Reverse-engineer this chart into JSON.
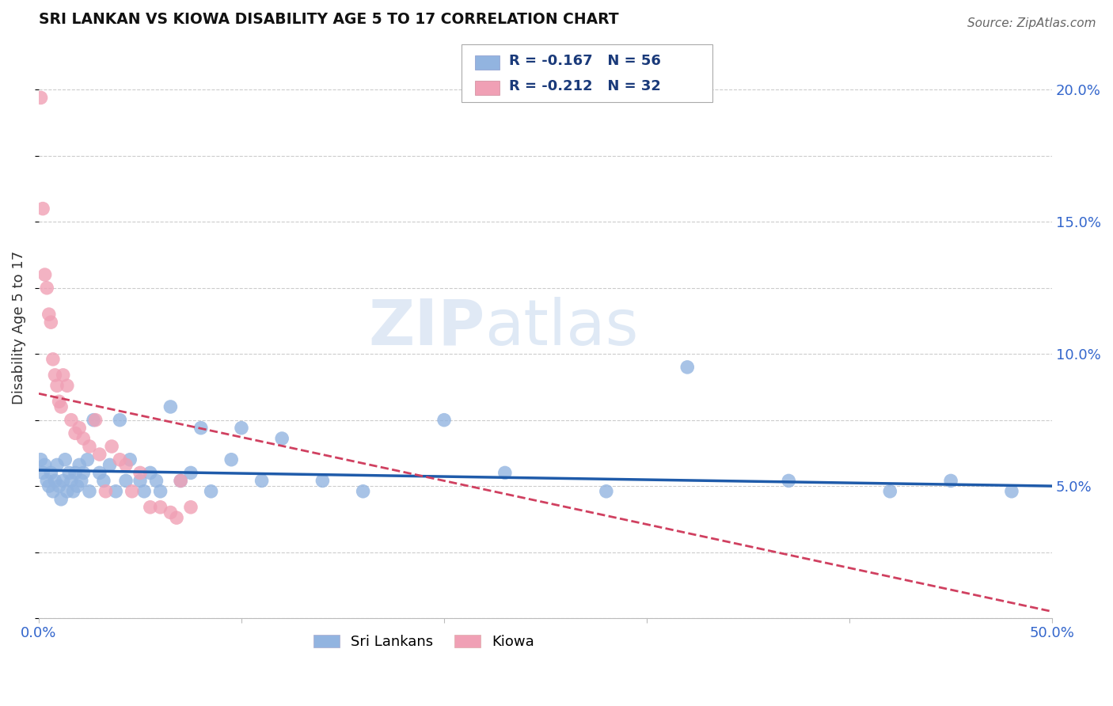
{
  "title": "SRI LANKAN VS KIOWA DISABILITY AGE 5 TO 17 CORRELATION CHART",
  "source": "Source: ZipAtlas.com",
  "ylabel": "Disability Age 5 to 17",
  "xlim": [
    0.0,
    0.5
  ],
  "ylim": [
    0.0,
    0.22
  ],
  "sri_lankan_R": -0.167,
  "sri_lankan_N": 56,
  "kiowa_R": -0.212,
  "kiowa_N": 32,
  "sri_lankan_color": "#92b4e0",
  "kiowa_color": "#f0a0b5",
  "trend_sri_color": "#1f5baa",
  "trend_kiowa_color": "#d04060",
  "sri_lankans_x": [
    0.001,
    0.002,
    0.003,
    0.004,
    0.005,
    0.006,
    0.007,
    0.008,
    0.009,
    0.01,
    0.011,
    0.012,
    0.013,
    0.014,
    0.015,
    0.016,
    0.017,
    0.018,
    0.019,
    0.02,
    0.021,
    0.022,
    0.024,
    0.025,
    0.027,
    0.03,
    0.032,
    0.035,
    0.038,
    0.04,
    0.043,
    0.045,
    0.05,
    0.052,
    0.055,
    0.058,
    0.06,
    0.065,
    0.07,
    0.075,
    0.08,
    0.085,
    0.095,
    0.1,
    0.11,
    0.12,
    0.14,
    0.16,
    0.2,
    0.23,
    0.28,
    0.32,
    0.37,
    0.42,
    0.45,
    0.48
  ],
  "sri_lankans_y": [
    0.06,
    0.055,
    0.058,
    0.052,
    0.05,
    0.055,
    0.048,
    0.052,
    0.058,
    0.05,
    0.045,
    0.052,
    0.06,
    0.048,
    0.055,
    0.052,
    0.048,
    0.055,
    0.05,
    0.058,
    0.052,
    0.055,
    0.06,
    0.048,
    0.075,
    0.055,
    0.052,
    0.058,
    0.048,
    0.075,
    0.052,
    0.06,
    0.052,
    0.048,
    0.055,
    0.052,
    0.048,
    0.08,
    0.052,
    0.055,
    0.072,
    0.048,
    0.06,
    0.072,
    0.052,
    0.068,
    0.052,
    0.048,
    0.075,
    0.055,
    0.048,
    0.095,
    0.052,
    0.048,
    0.052,
    0.048
  ],
  "kiowa_x": [
    0.001,
    0.002,
    0.003,
    0.004,
    0.005,
    0.006,
    0.007,
    0.008,
    0.009,
    0.01,
    0.011,
    0.012,
    0.014,
    0.016,
    0.018,
    0.02,
    0.022,
    0.025,
    0.028,
    0.03,
    0.033,
    0.036,
    0.04,
    0.043,
    0.046,
    0.05,
    0.055,
    0.06,
    0.065,
    0.068,
    0.07,
    0.075
  ],
  "kiowa_y": [
    0.197,
    0.155,
    0.13,
    0.125,
    0.115,
    0.112,
    0.098,
    0.092,
    0.088,
    0.082,
    0.08,
    0.092,
    0.088,
    0.075,
    0.07,
    0.072,
    0.068,
    0.065,
    0.075,
    0.062,
    0.048,
    0.065,
    0.06,
    0.058,
    0.048,
    0.055,
    0.042,
    0.042,
    0.04,
    0.038,
    0.052,
    0.042
  ],
  "trend_sri_intercept": 0.056,
  "trend_sri_slope": -0.012,
  "trend_kiowa_intercept": 0.085,
  "trend_kiowa_slope": -0.165
}
